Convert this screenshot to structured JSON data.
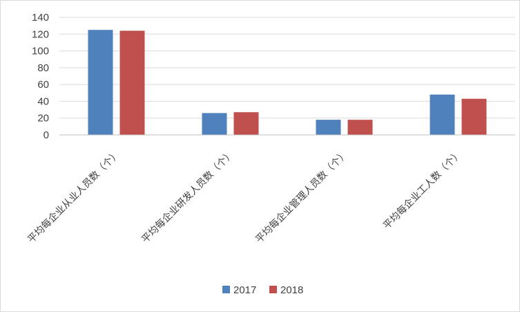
{
  "chart_data": {
    "type": "bar",
    "title": "",
    "xlabel": "",
    "ylabel": "",
    "categories": [
      "平均每企业从业人员数（个）",
      "平均每企业研发人员数（个）",
      "平均每企业管理人员数（个）",
      "平均每企业工人数（个）"
    ],
    "series": [
      {
        "name": "2017",
        "values": [
          125,
          26,
          18,
          48
        ],
        "color": "#4f81bd"
      },
      {
        "name": "2018",
        "values": [
          124,
          27,
          18,
          43
        ],
        "color": "#c0504d"
      }
    ],
    "ylim": [
      0,
      140
    ],
    "yticks": [
      0,
      20,
      40,
      60,
      80,
      100,
      120,
      140
    ],
    "grid": true,
    "legend_position": "bottom"
  }
}
